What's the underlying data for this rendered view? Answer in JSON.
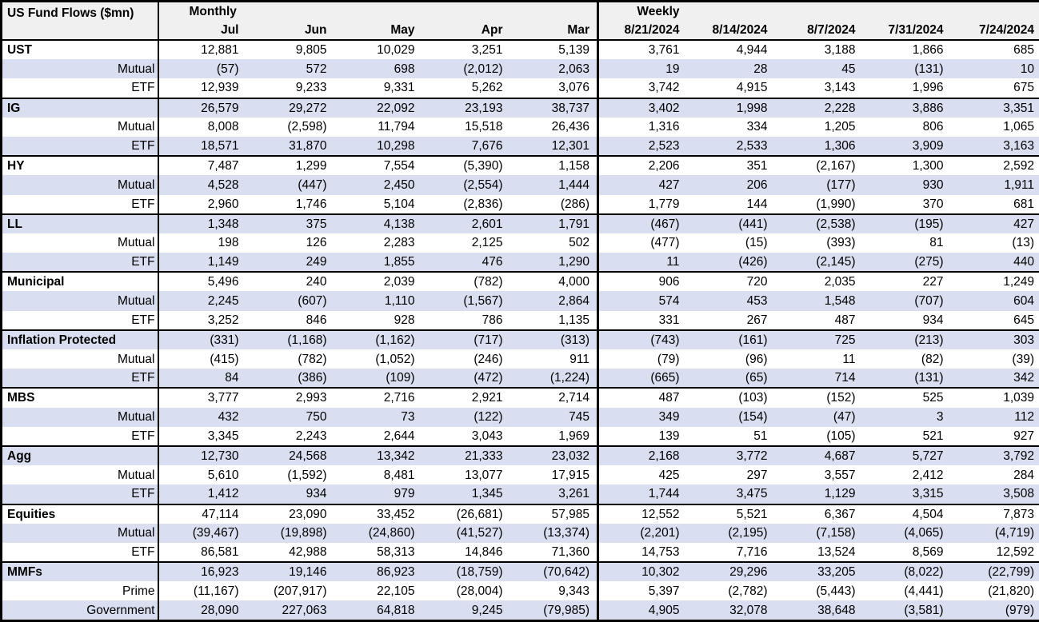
{
  "title": "US Fund Flows ($mn)",
  "sections": {
    "monthly": "Monthly",
    "weekly": "Weekly"
  },
  "columns": {
    "monthly": [
      "Jul",
      "Jun",
      "May",
      "Apr",
      "Mar"
    ],
    "weekly": [
      "8/21/2024",
      "8/14/2024",
      "8/7/2024",
      "7/31/2024",
      "7/24/2024"
    ]
  },
  "rows": [
    {
      "label": "UST",
      "kind": "category",
      "values": [
        "12,881",
        "9,805",
        "10,029",
        "3,251",
        "5,139",
        "3,761",
        "4,944",
        "3,188",
        "1,866",
        "685"
      ]
    },
    {
      "label": "Mutual",
      "kind": "sub",
      "values": [
        "(57)",
        "572",
        "698",
        "(2,012)",
        "2,063",
        "19",
        "28",
        "45",
        "(131)",
        "10"
      ]
    },
    {
      "label": "ETF",
      "kind": "sub",
      "values": [
        "12,939",
        "9,233",
        "9,331",
        "5,262",
        "3,076",
        "3,742",
        "4,915",
        "3,143",
        "1,996",
        "675"
      ]
    },
    {
      "label": "IG",
      "kind": "category",
      "values": [
        "26,579",
        "29,272",
        "22,092",
        "23,193",
        "38,737",
        "3,402",
        "1,998",
        "2,228",
        "3,886",
        "3,351"
      ]
    },
    {
      "label": "Mutual",
      "kind": "sub",
      "values": [
        "8,008",
        "(2,598)",
        "11,794",
        "15,518",
        "26,436",
        "1,316",
        "334",
        "1,205",
        "806",
        "1,065"
      ]
    },
    {
      "label": "ETF",
      "kind": "sub",
      "values": [
        "18,571",
        "31,870",
        "10,298",
        "7,676",
        "12,301",
        "2,523",
        "2,533",
        "1,306",
        "3,909",
        "3,163"
      ]
    },
    {
      "label": "HY",
      "kind": "category",
      "values": [
        "7,487",
        "1,299",
        "7,554",
        "(5,390)",
        "1,158",
        "2,206",
        "351",
        "(2,167)",
        "1,300",
        "2,592"
      ]
    },
    {
      "label": "Mutual",
      "kind": "sub",
      "values": [
        "4,528",
        "(447)",
        "2,450",
        "(2,554)",
        "1,444",
        "427",
        "206",
        "(177)",
        "930",
        "1,911"
      ]
    },
    {
      "label": "ETF",
      "kind": "sub",
      "values": [
        "2,960",
        "1,746",
        "5,104",
        "(2,836)",
        "(286)",
        "1,779",
        "144",
        "(1,990)",
        "370",
        "681"
      ]
    },
    {
      "label": "LL",
      "kind": "category",
      "values": [
        "1,348",
        "375",
        "4,138",
        "2,601",
        "1,791",
        "(467)",
        "(441)",
        "(2,538)",
        "(195)",
        "427"
      ]
    },
    {
      "label": "Mutual",
      "kind": "sub",
      "values": [
        "198",
        "126",
        "2,283",
        "2,125",
        "502",
        "(477)",
        "(15)",
        "(393)",
        "81",
        "(13)"
      ]
    },
    {
      "label": "ETF",
      "kind": "sub",
      "values": [
        "1,149",
        "249",
        "1,855",
        "476",
        "1,290",
        "11",
        "(426)",
        "(2,145)",
        "(275)",
        "440"
      ]
    },
    {
      "label": "Municipal",
      "kind": "category",
      "values": [
        "5,496",
        "240",
        "2,039",
        "(782)",
        "4,000",
        "906",
        "720",
        "2,035",
        "227",
        "1,249"
      ]
    },
    {
      "label": "Mutual",
      "kind": "sub",
      "values": [
        "2,245",
        "(607)",
        "1,110",
        "(1,567)",
        "2,864",
        "574",
        "453",
        "1,548",
        "(707)",
        "604"
      ]
    },
    {
      "label": "ETF",
      "kind": "sub",
      "values": [
        "3,252",
        "846",
        "928",
        "786",
        "1,135",
        "331",
        "267",
        "487",
        "934",
        "645"
      ]
    },
    {
      "label": "Inflation Protected",
      "kind": "category",
      "values": [
        "(331)",
        "(1,168)",
        "(1,162)",
        "(717)",
        "(313)",
        "(743)",
        "(161)",
        "725",
        "(213)",
        "303"
      ]
    },
    {
      "label": "Mutual",
      "kind": "sub",
      "values": [
        "(415)",
        "(782)",
        "(1,052)",
        "(246)",
        "911",
        "(79)",
        "(96)",
        "11",
        "(82)",
        "(39)"
      ]
    },
    {
      "label": "ETF",
      "kind": "sub",
      "values": [
        "84",
        "(386)",
        "(109)",
        "(472)",
        "(1,224)",
        "(665)",
        "(65)",
        "714",
        "(131)",
        "342"
      ]
    },
    {
      "label": "MBS",
      "kind": "category",
      "values": [
        "3,777",
        "2,993",
        "2,716",
        "2,921",
        "2,714",
        "487",
        "(103)",
        "(152)",
        "525",
        "1,039"
      ]
    },
    {
      "label": "Mutual",
      "kind": "sub",
      "values": [
        "432",
        "750",
        "73",
        "(122)",
        "745",
        "349",
        "(154)",
        "(47)",
        "3",
        "112"
      ]
    },
    {
      "label": "ETF",
      "kind": "sub",
      "values": [
        "3,345",
        "2,243",
        "2,644",
        "3,043",
        "1,969",
        "139",
        "51",
        "(105)",
        "521",
        "927"
      ]
    },
    {
      "label": "Agg",
      "kind": "category",
      "values": [
        "12,730",
        "24,568",
        "13,342",
        "21,333",
        "23,032",
        "2,168",
        "3,772",
        "4,687",
        "5,727",
        "3,792"
      ]
    },
    {
      "label": "Mutual",
      "kind": "sub",
      "values": [
        "5,610",
        "(1,592)",
        "8,481",
        "13,077",
        "17,915",
        "425",
        "297",
        "3,557",
        "2,412",
        "284"
      ]
    },
    {
      "label": "ETF",
      "kind": "sub",
      "values": [
        "1,412",
        "934",
        "979",
        "1,345",
        "3,261",
        "1,744",
        "3,475",
        "1,129",
        "3,315",
        "3,508"
      ]
    },
    {
      "label": "Equities",
      "kind": "category",
      "values": [
        "47,114",
        "23,090",
        "33,452",
        "(26,681)",
        "57,985",
        "12,552",
        "5,521",
        "6,367",
        "4,504",
        "7,873"
      ]
    },
    {
      "label": "Mutual",
      "kind": "sub",
      "values": [
        "(39,467)",
        "(19,898)",
        "(24,860)",
        "(41,527)",
        "(13,374)",
        "(2,201)",
        "(2,195)",
        "(7,158)",
        "(4,065)",
        "(4,719)"
      ]
    },
    {
      "label": "ETF",
      "kind": "sub",
      "values": [
        "86,581",
        "42,988",
        "58,313",
        "14,846",
        "71,360",
        "14,753",
        "7,716",
        "13,524",
        "8,569",
        "12,592"
      ]
    },
    {
      "label": "MMFs",
      "kind": "category",
      "values": [
        "16,923",
        "19,146",
        "86,923",
        "(18,759)",
        "(70,642)",
        "10,302",
        "29,296",
        "33,205",
        "(8,022)",
        "(22,799)"
      ]
    },
    {
      "label": "Prime",
      "kind": "sub",
      "values": [
        "(11,167)",
        "(207,917)",
        "22,105",
        "(28,004)",
        "9,343",
        "5,397",
        "(2,782)",
        "(5,443)",
        "(4,441)",
        "(21,820)"
      ]
    },
    {
      "label": "Government",
      "kind": "sub",
      "values": [
        "28,090",
        "227,063",
        "64,818",
        "9,245",
        "(79,985)",
        "4,905",
        "32,078",
        "38,648",
        "(3,581)",
        "(979)"
      ]
    }
  ],
  "colors": {
    "row_shade": "#d9dff1",
    "header_bg": "#f0f0f0",
    "border": "#000000",
    "text": "#000000"
  }
}
